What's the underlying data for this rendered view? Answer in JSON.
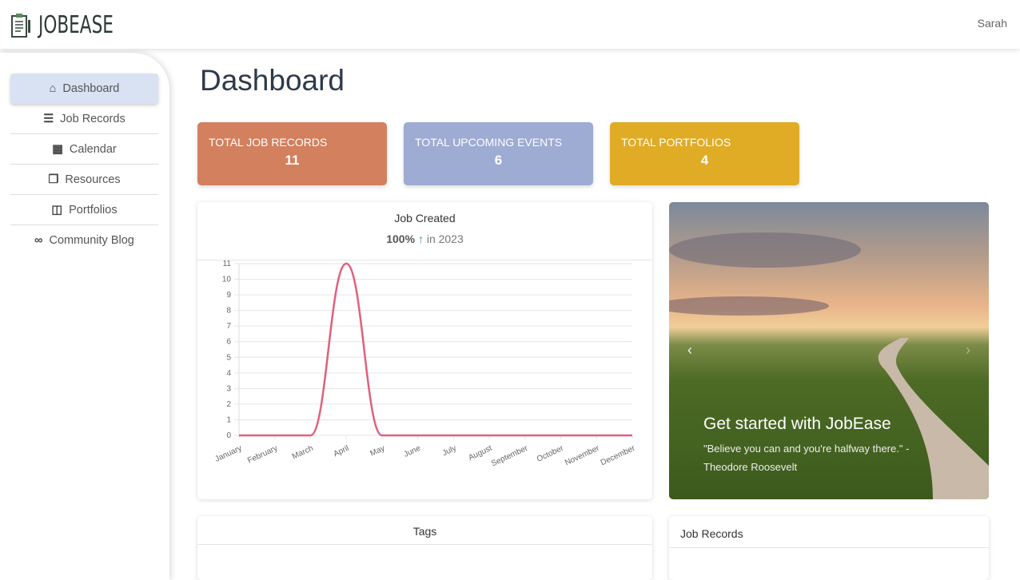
{
  "app": {
    "name": "JOBEASE",
    "user": "Sarah"
  },
  "sidebar": {
    "items": [
      {
        "label": "Dashboard",
        "icon": "home-icon",
        "active": true
      },
      {
        "label": "Job Records",
        "icon": "table-list-icon"
      },
      {
        "label": "Calendar",
        "icon": "calendar-icon"
      },
      {
        "label": "Resources",
        "icon": "copy-icon"
      },
      {
        "label": "Portfolios",
        "icon": "columns-icon"
      },
      {
        "label": "Community Blog",
        "icon": "link-icon"
      }
    ]
  },
  "page": {
    "title": "Dashboard"
  },
  "stats": [
    {
      "label": "TOTAL JOB RECORDS",
      "value": "11",
      "color": "#d3805e"
    },
    {
      "label": "TOTAL UPCOMING EVENTS",
      "value": "6",
      "color": "#9eabd3"
    },
    {
      "label": "TOTAL PORTFOLIOS",
      "value": "4",
      "color": "#e0ac26"
    }
  ],
  "chart_card": {
    "percent": "100%",
    "suffix": "in 2023"
  },
  "chart_data": {
    "type": "line",
    "title": "Job Created",
    "categories": [
      "January",
      "February",
      "March",
      "April",
      "May",
      "June",
      "July",
      "August",
      "September",
      "October",
      "November",
      "December"
    ],
    "series": [
      {
        "name": "Job Created",
        "values": [
          0,
          0,
          0,
          11,
          0,
          0,
          0,
          0,
          0,
          0,
          0,
          0
        ],
        "color": "#e0607e"
      }
    ],
    "yticks": [
      0,
      1,
      2,
      3,
      4,
      5,
      6,
      7,
      8,
      9,
      10,
      11
    ],
    "ylim": [
      0,
      11
    ],
    "grid": true,
    "xlabel": "",
    "ylabel": ""
  },
  "carousel": {
    "title": "Get started with JobEase",
    "quote": "\"Believe you can and you're halfway there.\" - Theodore Roosevelt"
  },
  "sections": {
    "tags": "Tags",
    "job_records": "Job Records"
  }
}
